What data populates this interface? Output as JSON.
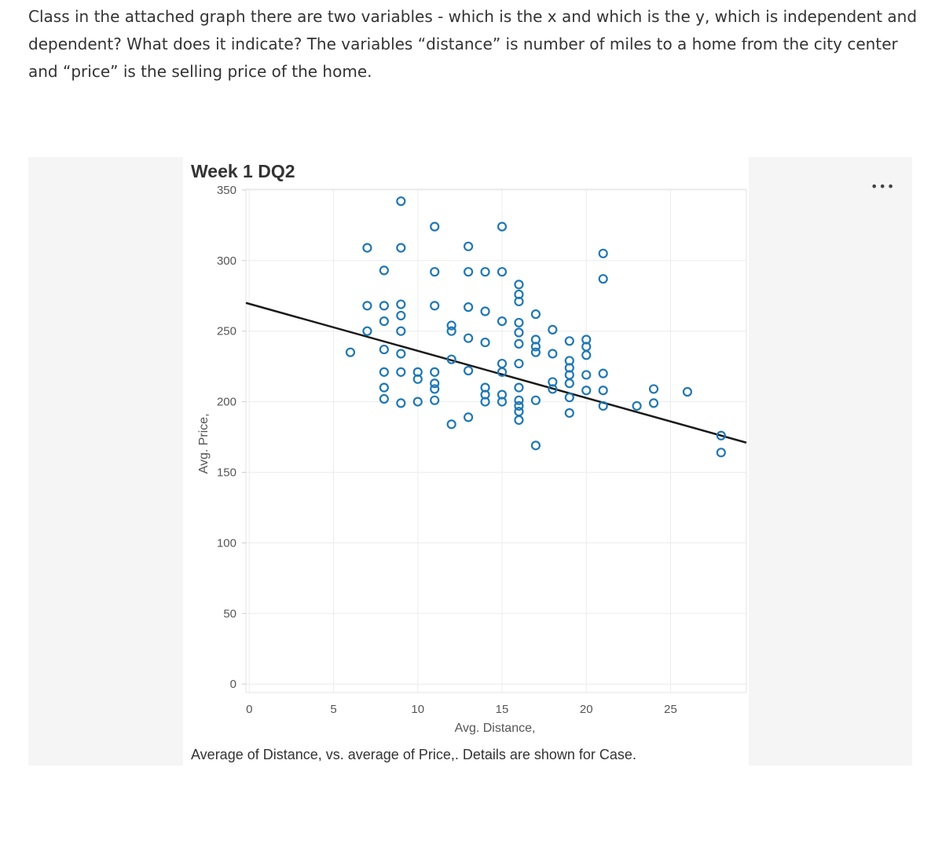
{
  "question": {
    "text": "Class in the attached graph there are two variables - which is the x and which is the y, which is independent and dependent? What does it indicate? The variables “distance” is number of miles to a home from the city center and “price” is the selling price of the home."
  },
  "more_menu": {
    "label": "•••"
  },
  "chart_data": {
    "type": "scatter",
    "title": "Week 1 DQ2",
    "xlabel": "Avg. Distance,",
    "ylabel": "Avg. Price,",
    "caption": "Average of Distance, vs. average of Price,.  Details are shown for Case.",
    "xlim": [
      -0.2,
      29.5
    ],
    "ylim": [
      -6,
      350.5
    ],
    "x_ticks": [
      0,
      5,
      10,
      15,
      20,
      25
    ],
    "y_ticks": [
      0,
      50,
      100,
      150,
      200,
      250,
      300,
      350
    ],
    "grid": true,
    "colors": {
      "marker": "#1f77b4",
      "trendline": "#1a1a1a",
      "grid": "#ececec"
    },
    "trendline": {
      "x1": -0.2,
      "y1": 270,
      "x2": 29.5,
      "y2": 171
    },
    "points": [
      {
        "x": 9,
        "y": 342
      },
      {
        "x": 11,
        "y": 324
      },
      {
        "x": 15,
        "y": 324
      },
      {
        "x": 7,
        "y": 309
      },
      {
        "x": 9,
        "y": 309
      },
      {
        "x": 13,
        "y": 310
      },
      {
        "x": 21,
        "y": 305
      },
      {
        "x": 8,
        "y": 293
      },
      {
        "x": 11,
        "y": 292
      },
      {
        "x": 13,
        "y": 292
      },
      {
        "x": 14,
        "y": 292
      },
      {
        "x": 15,
        "y": 292
      },
      {
        "x": 21,
        "y": 287
      },
      {
        "x": 16,
        "y": 283
      },
      {
        "x": 16,
        "y": 276
      },
      {
        "x": 16,
        "y": 271
      },
      {
        "x": 7,
        "y": 268
      },
      {
        "x": 8,
        "y": 268
      },
      {
        "x": 9,
        "y": 269
      },
      {
        "x": 11,
        "y": 268
      },
      {
        "x": 13,
        "y": 267
      },
      {
        "x": 14,
        "y": 264
      },
      {
        "x": 17,
        "y": 262
      },
      {
        "x": 8,
        "y": 257
      },
      {
        "x": 9,
        "y": 261
      },
      {
        "x": 15,
        "y": 257
      },
      {
        "x": 16,
        "y": 256
      },
      {
        "x": 12,
        "y": 254
      },
      {
        "x": 18,
        "y": 251
      },
      {
        "x": 7,
        "y": 250
      },
      {
        "x": 9,
        "y": 250
      },
      {
        "x": 12,
        "y": 250
      },
      {
        "x": 16,
        "y": 249
      },
      {
        "x": 13,
        "y": 245
      },
      {
        "x": 14,
        "y": 242
      },
      {
        "x": 16,
        "y": 241
      },
      {
        "x": 17,
        "y": 244
      },
      {
        "x": 19,
        "y": 243
      },
      {
        "x": 20,
        "y": 244
      },
      {
        "x": 20,
        "y": 239
      },
      {
        "x": 17,
        "y": 239
      },
      {
        "x": 17,
        "y": 235
      },
      {
        "x": 18,
        "y": 234
      },
      {
        "x": 20,
        "y": 233
      },
      {
        "x": 6,
        "y": 235
      },
      {
        "x": 8,
        "y": 237
      },
      {
        "x": 9,
        "y": 234
      },
      {
        "x": 12,
        "y": 230
      },
      {
        "x": 19,
        "y": 229
      },
      {
        "x": 15,
        "y": 227
      },
      {
        "x": 16,
        "y": 227
      },
      {
        "x": 19,
        "y": 224
      },
      {
        "x": 8,
        "y": 221
      },
      {
        "x": 9,
        "y": 221
      },
      {
        "x": 10,
        "y": 221
      },
      {
        "x": 11,
        "y": 221
      },
      {
        "x": 13,
        "y": 222
      },
      {
        "x": 15,
        "y": 221
      },
      {
        "x": 19,
        "y": 219
      },
      {
        "x": 20,
        "y": 219
      },
      {
        "x": 21,
        "y": 220
      },
      {
        "x": 10,
        "y": 216
      },
      {
        "x": 11,
        "y": 213
      },
      {
        "x": 18,
        "y": 214
      },
      {
        "x": 19,
        "y": 213
      },
      {
        "x": 8,
        "y": 210
      },
      {
        "x": 11,
        "y": 209
      },
      {
        "x": 14,
        "y": 210
      },
      {
        "x": 16,
        "y": 210
      },
      {
        "x": 18,
        "y": 209
      },
      {
        "x": 20,
        "y": 208
      },
      {
        "x": 21,
        "y": 208
      },
      {
        "x": 24,
        "y": 209
      },
      {
        "x": 26,
        "y": 207
      },
      {
        "x": 8,
        "y": 202
      },
      {
        "x": 9,
        "y": 199
      },
      {
        "x": 10,
        "y": 200
      },
      {
        "x": 11,
        "y": 201
      },
      {
        "x": 14,
        "y": 205
      },
      {
        "x": 15,
        "y": 205
      },
      {
        "x": 16,
        "y": 201
      },
      {
        "x": 17,
        "y": 201
      },
      {
        "x": 19,
        "y": 203
      },
      {
        "x": 14,
        "y": 200
      },
      {
        "x": 15,
        "y": 200
      },
      {
        "x": 16,
        "y": 197
      },
      {
        "x": 21,
        "y": 197
      },
      {
        "x": 23,
        "y": 197
      },
      {
        "x": 24,
        "y": 199
      },
      {
        "x": 16,
        "y": 193
      },
      {
        "x": 19,
        "y": 192
      },
      {
        "x": 16,
        "y": 187
      },
      {
        "x": 12,
        "y": 184
      },
      {
        "x": 13,
        "y": 189
      },
      {
        "x": 17,
        "y": 169
      },
      {
        "x": 28,
        "y": 176
      },
      {
        "x": 28,
        "y": 164
      }
    ]
  }
}
